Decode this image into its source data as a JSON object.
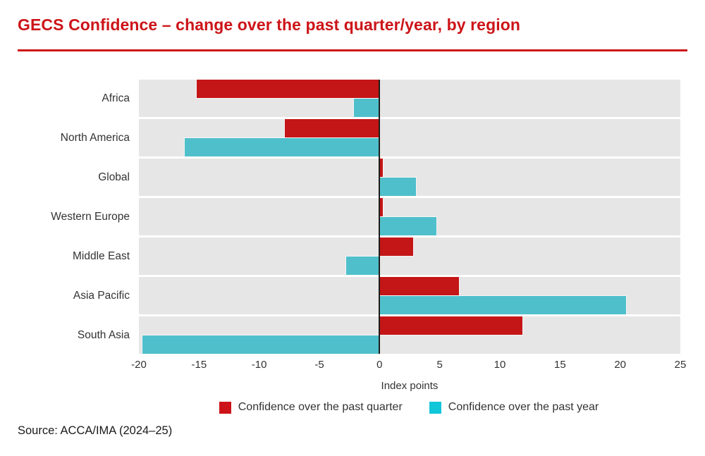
{
  "page": {
    "title": "GECS Confidence – change over the past quarter/year, by region",
    "source": "Source: ACCA/IMA (2024–25)"
  },
  "colors": {
    "title_red": "#cc1418",
    "rule_red": "#cc1418",
    "bar_red": "#c41517",
    "bar_cyan": "#4fc0cb",
    "legend_cyan": "#10c6d8",
    "row_bg": "#e6e6e6",
    "zero_line": "#1d1d1b",
    "text": "#333333"
  },
  "chart_data": {
    "type": "bar",
    "orientation": "horizontal",
    "title": "GECS Confidence – change over the past quarter/year, by region",
    "xlabel": "Index points",
    "xlim": [
      -20,
      25
    ],
    "xticks": [
      -20,
      -15,
      -10,
      -5,
      0,
      5,
      10,
      15,
      20,
      25
    ],
    "grid": false,
    "legend_position": "bottom",
    "categories": [
      "Africa",
      "North America",
      "Global",
      "Western Europe",
      "Middle East",
      "Asia Pacific",
      "South Asia"
    ],
    "series": [
      {
        "name": "Confidence over the past quarter",
        "color": "#c41517",
        "values": [
          -15.2,
          -7.9,
          0.3,
          0.3,
          2.8,
          6.6,
          11.9
        ]
      },
      {
        "name": "Confidence over the past year",
        "color": "#4fc0cb",
        "values": [
          -2.1,
          -16.2,
          3.0,
          4.7,
          -2.8,
          20.5,
          -19.7
        ]
      }
    ]
  },
  "legend": {
    "items": [
      {
        "label": "Confidence over the past quarter",
        "color": "#cc1418"
      },
      {
        "label": "Confidence over the past year",
        "color": "#10c6d8"
      }
    ]
  }
}
